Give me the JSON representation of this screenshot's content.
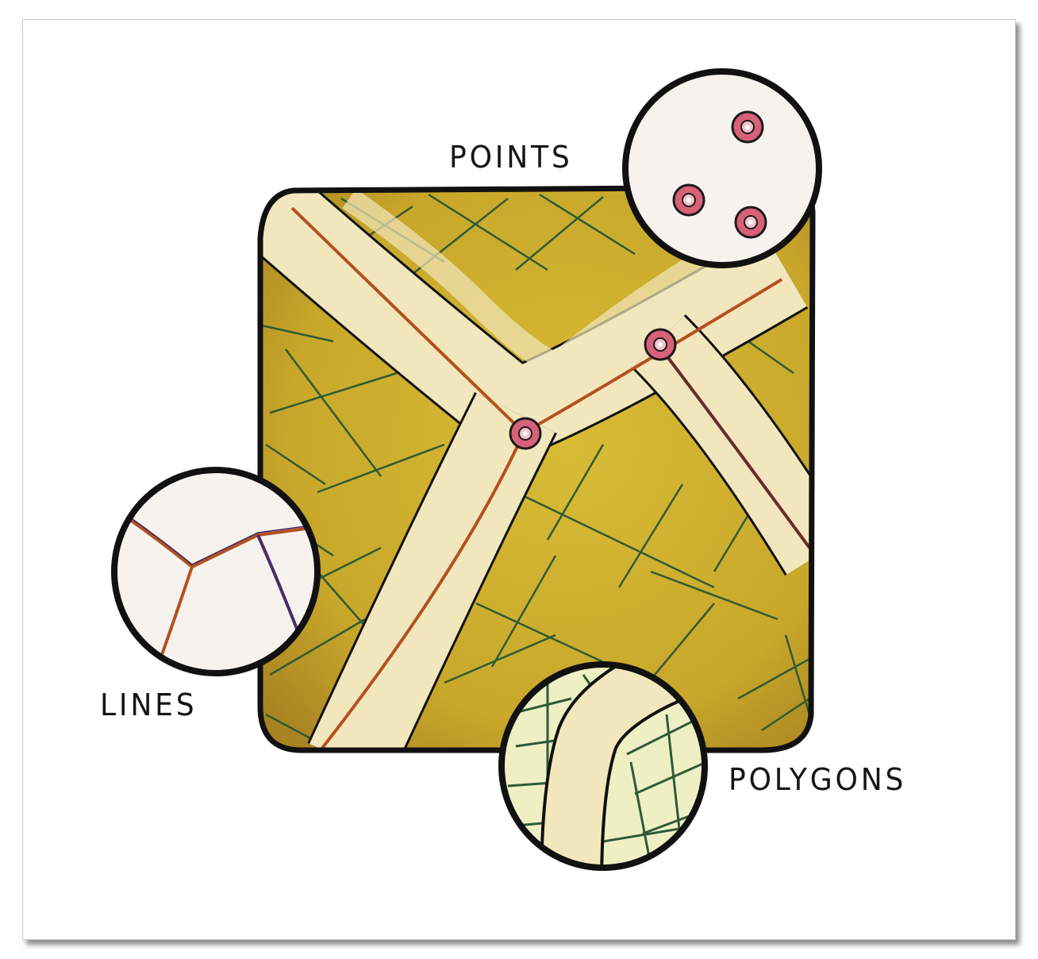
{
  "labels": {
    "points": "POINTS",
    "lines": "LINES",
    "polygons": "POLYGONS"
  },
  "colors": {
    "map_fill": "#c9a82a",
    "road": "#f2e7bc",
    "road_line": "#b5501f",
    "grid": "#2e5a36",
    "point_marker": "#d9607a",
    "ink": "#111111"
  },
  "icons": [
    "point-marker-icon"
  ]
}
